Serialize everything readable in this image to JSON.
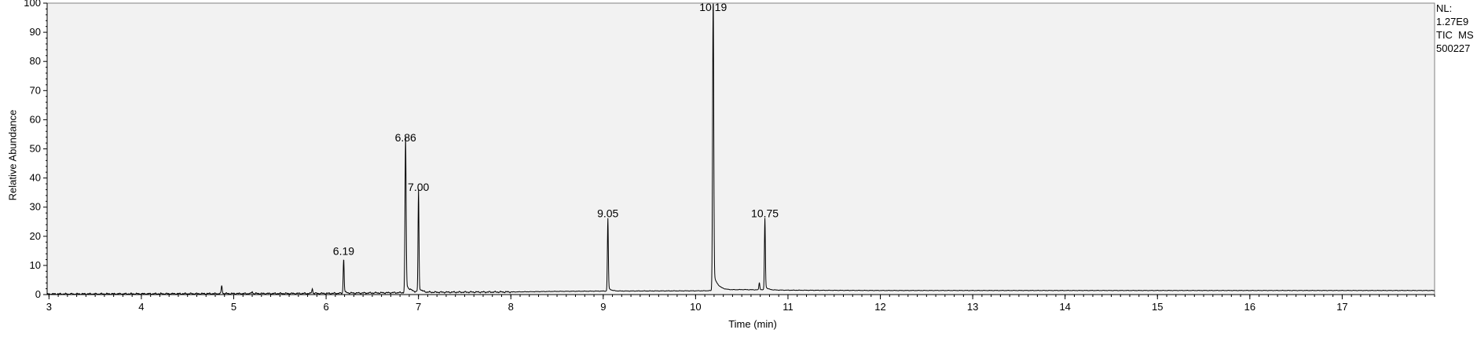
{
  "chart_data": {
    "type": "line",
    "xlabel": "Time (min)",
    "ylabel": "Relative Abundance",
    "xlim": [
      2.98,
      18.0
    ],
    "ylim": [
      0,
      100
    ],
    "x_ticks": [
      3,
      4,
      5,
      6,
      7,
      8,
      9,
      10,
      11,
      12,
      13,
      14,
      15,
      16,
      17
    ],
    "y_ticks": [
      0,
      10,
      20,
      30,
      40,
      50,
      60,
      70,
      80,
      90,
      100
    ],
    "grid": false,
    "line_color": "#000000",
    "plot_background": "#f2f2f2",
    "side_info": {
      "nl_label": "NL:",
      "nl_value": "1.27E9",
      "trace_label": "TIC  MS",
      "sample_id": "500227"
    },
    "peaks": [
      {
        "x": 4.87,
        "y": 3,
        "label": ""
      },
      {
        "x": 5.2,
        "y": 1,
        "label": ""
      },
      {
        "x": 5.85,
        "y": 2,
        "label": ""
      },
      {
        "x": 6.19,
        "y": 12,
        "label": "6.19"
      },
      {
        "x": 6.86,
        "y": 51,
        "label": "6.86"
      },
      {
        "x": 7.0,
        "y": 34,
        "label": "7.00"
      },
      {
        "x": 9.05,
        "y": 25,
        "label": "9.05"
      },
      {
        "x": 10.19,
        "y": 100,
        "label": "10.19"
      },
      {
        "x": 10.69,
        "y": 4,
        "label": ""
      },
      {
        "x": 10.75,
        "y": 25,
        "label": "10.75"
      }
    ],
    "baseline": [
      {
        "x": 2.98,
        "y": 0.2
      },
      {
        "x": 6.0,
        "y": 0.4
      },
      {
        "x": 7.2,
        "y": 0.8
      },
      {
        "x": 8.0,
        "y": 0.9
      },
      {
        "x": 8.5,
        "y": 1.1
      },
      {
        "x": 9.0,
        "y": 1.2
      },
      {
        "x": 10.1,
        "y": 1.3
      },
      {
        "x": 10.5,
        "y": 1.7
      },
      {
        "x": 11.0,
        "y": 1.5
      },
      {
        "x": 12.0,
        "y": 1.4
      },
      {
        "x": 18.0,
        "y": 1.4
      }
    ]
  }
}
